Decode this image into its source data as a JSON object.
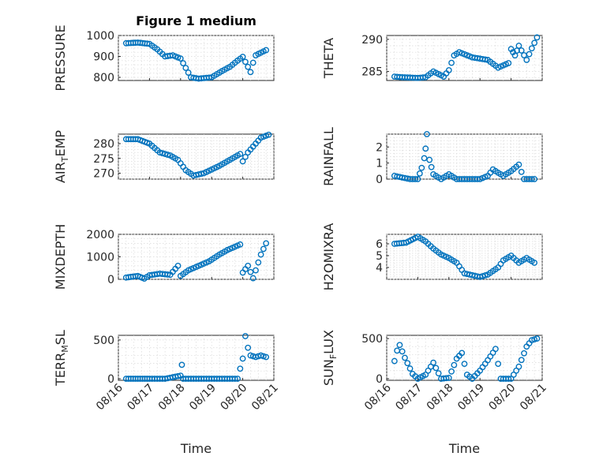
{
  "chart_data": [
    {
      "type": "scatter",
      "title": "Figure 1 medium",
      "ylabel": "PRESSURE",
      "ylim": [
        785,
        1000
      ],
      "yticks": [
        800,
        900,
        1000
      ],
      "xticklabels": [
        "",
        "",
        "",
        "",
        ""
      ],
      "xlabel": "",
      "x": [
        "08/16 06:00",
        "08/16 15:00",
        "08/17 00:00",
        "08/17 06:00",
        "08/17 12:00",
        "08/17 18:00",
        "08/18 00:00",
        "08/18 04:00",
        "08/18 08:00",
        "08/18 14:00",
        "08/19 00:00",
        "08/19 08:00",
        "08/19 14:00",
        "08/19 20:00",
        "08/20 00:00",
        "08/20 04:00",
        "08/20 06:00",
        "08/20 08:00",
        "08/20 10:00",
        "08/20 12:00",
        "08/20 18:00"
      ],
      "y": [
        963,
        966,
        960,
        934,
        900,
        905,
        890,
        845,
        800,
        794,
        800,
        830,
        850,
        880,
        898,
        850,
        825,
        870,
        905,
        912,
        930
      ]
    },
    {
      "type": "scatter",
      "title": "",
      "ylabel": "THETA",
      "ylim": [
        283.6,
        290.6
      ],
      "yticks": [
        285,
        290
      ],
      "xticklabels": [
        "",
        "",
        "",
        "",
        ""
      ],
      "xlabel": "",
      "x": [
        "08/16 06:00",
        "08/16 12:00",
        "08/17 00:00",
        "08/17 06:00",
        "08/17 12:00",
        "08/17 20:00",
        "08/18 00:00",
        "08/18 04:00",
        "08/18 08:00",
        "08/18 18:00",
        "08/19 06:00",
        "08/19 14:00",
        "08/19 22:00",
        "08/20 00:00",
        "08/20 03:00",
        "08/20 06:00",
        "08/20 12:00",
        "08/20 16:00",
        "08/20 20:00"
      ],
      "y": [
        284.2,
        284.1,
        284,
        284.1,
        285,
        284.2,
        285.2,
        287.5,
        288,
        287.2,
        286.8,
        285.6,
        286.3,
        288.5,
        287.5,
        289,
        286.8,
        288.6,
        290.3
      ]
    },
    {
      "type": "scatter",
      "title": "",
      "ylabel": "AIR_TEMP",
      "ylim": [
        268,
        283.2
      ],
      "yticks": [
        270,
        275,
        280
      ],
      "xticklabels": [
        "",
        "",
        "",
        "",
        ""
      ],
      "xlabel": "",
      "x": [
        "08/16 06:00",
        "08/16 15:00",
        "08/17 00:00",
        "08/17 08:00",
        "08/17 16:00",
        "08/17 22:00",
        "08/18 04:00",
        "08/18 10:00",
        "08/18 18:00",
        "08/19 06:00",
        "08/19 14:00",
        "08/19 22:00",
        "08/20 00:00",
        "08/20 04:00",
        "08/20 08:00",
        "08/20 14:00",
        "08/20 20:00"
      ],
      "y": [
        281.5,
        281.5,
        280,
        277,
        276,
        274.5,
        271,
        269.2,
        270,
        272.5,
        274.5,
        276.5,
        274,
        277,
        279,
        282,
        283
      ]
    },
    {
      "type": "scatter",
      "title": "",
      "ylabel": "RAINFALL",
      "ylim": [
        0,
        2.8
      ],
      "yticks": [
        0,
        1,
        2
      ],
      "xticklabels": [
        "",
        "",
        "",
        "",
        ""
      ],
      "xlabel": "",
      "x": [
        "08/16 06:00",
        "08/16 18:00",
        "08/17 00:00",
        "08/17 03:00",
        "08/17 05:00",
        "08/17 06:00",
        "08/17 07:00",
        "08/17 09:00",
        "08/17 12:00",
        "08/17 18:00",
        "08/18 00:00",
        "08/18 06:00",
        "08/18 12:00",
        "08/19 00:00",
        "08/19 06:00",
        "08/19 10:00",
        "08/19 14:00",
        "08/19 18:00",
        "08/20 00:00",
        "08/20 06:00",
        "08/20 10:00",
        "08/20 18:00"
      ],
      "y": [
        0.2,
        0,
        0,
        0.7,
        1.3,
        1.9,
        2.8,
        1.2,
        0.3,
        0,
        0.3,
        0,
        0,
        0,
        0.2,
        0.6,
        0.4,
        0.2,
        0.5,
        0.9,
        0,
        0
      ]
    },
    {
      "type": "scatter",
      "title": "",
      "ylabel": "MIXDEPTH",
      "ylim": [
        0,
        2000
      ],
      "yticks": [
        0,
        1000,
        2000
      ],
      "xticklabels": [
        "",
        "",
        "",
        "",
        ""
      ],
      "xlabel": "",
      "x": [
        "08/16 06:00",
        "08/16 15:00",
        "08/16 20:00",
        "08/17 00:00",
        "08/17 08:00",
        "08/17 16:00",
        "08/17 22:00",
        "08/18 00:00",
        "08/18 06:00",
        "08/18 14:00",
        "08/18 22:00",
        "08/19 06:00",
        "08/19 12:00",
        "08/19 18:00",
        "08/19 22:00",
        "08/20 00:00",
        "08/20 04:00",
        "08/20 08:00",
        "08/20 14:00",
        "08/20 18:00"
      ],
      "y": [
        80,
        150,
        30,
        180,
        250,
        200,
        600,
        150,
        400,
        600,
        800,
        1100,
        1300,
        1450,
        1550,
        300,
        600,
        50,
        1100,
        1600
      ]
    },
    {
      "type": "scatter",
      "title": "",
      "ylabel": "H2OMIXRA",
      "ylim": [
        3,
        6.8
      ],
      "yticks": [
        4,
        5,
        6
      ],
      "xticklabels": [
        "",
        "",
        "",
        "",
        ""
      ],
      "xlabel": "",
      "x": [
        "08/16 06:00",
        "08/16 15:00",
        "08/17 00:00",
        "08/17 06:00",
        "08/17 12:00",
        "08/17 18:00",
        "08/18 00:00",
        "08/18 06:00",
        "08/18 12:00",
        "08/19 00:00",
        "08/19 06:00",
        "08/19 14:00",
        "08/19 18:00",
        "08/20 00:00",
        "08/20 06:00",
        "08/20 12:00",
        "08/20 18:00"
      ],
      "y": [
        6,
        6.1,
        6.6,
        6.2,
        5.6,
        5.1,
        4.8,
        4.4,
        3.5,
        3.2,
        3.4,
        4.0,
        4.6,
        5.0,
        4.4,
        4.8,
        4.4
      ]
    },
    {
      "type": "scatter",
      "title": "",
      "ylabel": "TERR_MSL",
      "ylim": [
        -20,
        560
      ],
      "yticks": [
        0,
        500
      ],
      "xticklabels": [
        "08/16",
        "08/17",
        "08/18",
        "08/19",
        "08/20",
        "08/21"
      ],
      "xlabel": "Time",
      "x": [
        "08/16 06:00",
        "08/16 15:00",
        "08/17 00:00",
        "08/17 12:00",
        "08/18 00:00",
        "08/18 01:00",
        "08/18 02:00",
        "08/18 12:00",
        "08/19 00:00",
        "08/19 12:00",
        "08/19 16:00",
        "08/19 20:00",
        "08/20 00:00",
        "08/20 02:00",
        "08/20 04:00",
        "08/20 06:00",
        "08/20 10:00",
        "08/20 14:00",
        "08/20 18:00"
      ],
      "y": [
        0,
        0,
        0,
        0,
        40,
        180,
        0,
        0,
        0,
        0,
        0,
        0,
        260,
        550,
        400,
        300,
        280,
        300,
        280
      ]
    },
    {
      "type": "scatter",
      "title": "",
      "ylabel": "SUN_FLUX",
      "ylim": [
        -20,
        540
      ],
      "yticks": [
        0,
        500
      ],
      "xticklabels": [
        "08/16",
        "08/17",
        "08/18",
        "08/19",
        "08/20",
        "08/21"
      ],
      "xlabel": "Time",
      "x": [
        "08/16 06:00",
        "08/16 08:00",
        "08/16 10:00",
        "08/16 14:00",
        "08/16 20:00",
        "08/17 00:00",
        "08/17 06:00",
        "08/17 12:00",
        "08/17 18:00",
        "08/18 00:00",
        "08/18 06:00",
        "08/18 10:00",
        "08/18 14:00",
        "08/18 18:00",
        "08/19 00:00",
        "08/19 06:00",
        "08/19 12:00",
        "08/19 16:00",
        "08/20 00:00",
        "08/20 06:00",
        "08/20 12:00",
        "08/20 16:00",
        "08/20 20:00"
      ],
      "y": [
        220,
        350,
        420,
        260,
        60,
        0,
        50,
        200,
        0,
        10,
        250,
        320,
        50,
        0,
        100,
        230,
        370,
        0,
        0,
        150,
        400,
        480,
        500
      ]
    }
  ]
}
